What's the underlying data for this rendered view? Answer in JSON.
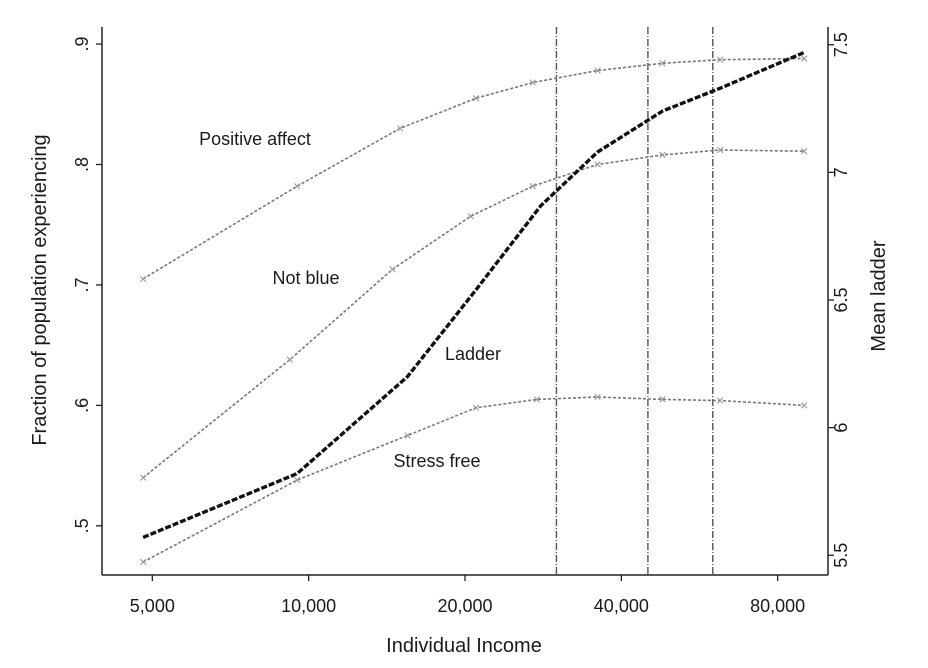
{
  "chart_data": {
    "type": "line",
    "title": "",
    "xlabel": "Individual Income",
    "ylabel_left": "Fraction of population experiencing",
    "ylabel_right": "Mean ladder",
    "x_scale": "log",
    "x_ticks": [
      5000,
      10000,
      20000,
      40000,
      80000
    ],
    "x_tick_labels": [
      "5,000",
      "10,000",
      "20,000",
      "40,000",
      "80,000"
    ],
    "xlim": [
      4000,
      100000
    ],
    "y_left_ticks": [
      0.5,
      0.6,
      0.7,
      0.8,
      0.9
    ],
    "y_left_tick_labels": [
      ".5",
      ".6",
      ".7",
      ".8",
      ".9"
    ],
    "y_left_lim": [
      0.465,
      0.91
    ],
    "y_right_ticks": [
      5.5,
      6,
      6.5,
      7,
      7.5
    ],
    "y_right_tick_labels": [
      "5.5",
      "6",
      "6.5",
      "7",
      "7.5"
    ],
    "y_right_lim": [
      5.45,
      7.55
    ],
    "vertical_reference_lines_x": [
      30000,
      45000,
      60000
    ],
    "grid": false,
    "series": [
      {
        "name": "Positive affect",
        "axis": "left",
        "style": "dotted",
        "x": [
          4800,
          9500,
          15000,
          21000,
          27000,
          36000,
          48000,
          62000,
          90000
        ],
        "values": [
          0.705,
          0.782,
          0.83,
          0.855,
          0.868,
          0.878,
          0.884,
          0.887,
          0.888
        ]
      },
      {
        "name": "Not blue",
        "axis": "left",
        "style": "dotted",
        "x": [
          4800,
          9200,
          14500,
          20500,
          27000,
          36000,
          48000,
          62000,
          90000
        ],
        "values": [
          0.54,
          0.638,
          0.713,
          0.757,
          0.782,
          0.8,
          0.808,
          0.812,
          0.811
        ]
      },
      {
        "name": "Stress free",
        "axis": "left",
        "style": "dotted",
        "x": [
          4800,
          9500,
          15500,
          21000,
          27500,
          36000,
          48000,
          62000,
          90000
        ],
        "values": [
          0.47,
          0.538,
          0.575,
          0.598,
          0.605,
          0.607,
          0.605,
          0.604,
          0.6
        ]
      },
      {
        "name": "Ladder",
        "axis": "right",
        "style": "dashed-bold",
        "x": [
          4800,
          9500,
          15500,
          21000,
          28000,
          36000,
          48000,
          62000,
          90000
        ],
        "values": [
          5.57,
          5.82,
          6.2,
          6.54,
          6.87,
          7.08,
          7.24,
          7.33,
          7.47
        ]
      }
    ]
  }
}
